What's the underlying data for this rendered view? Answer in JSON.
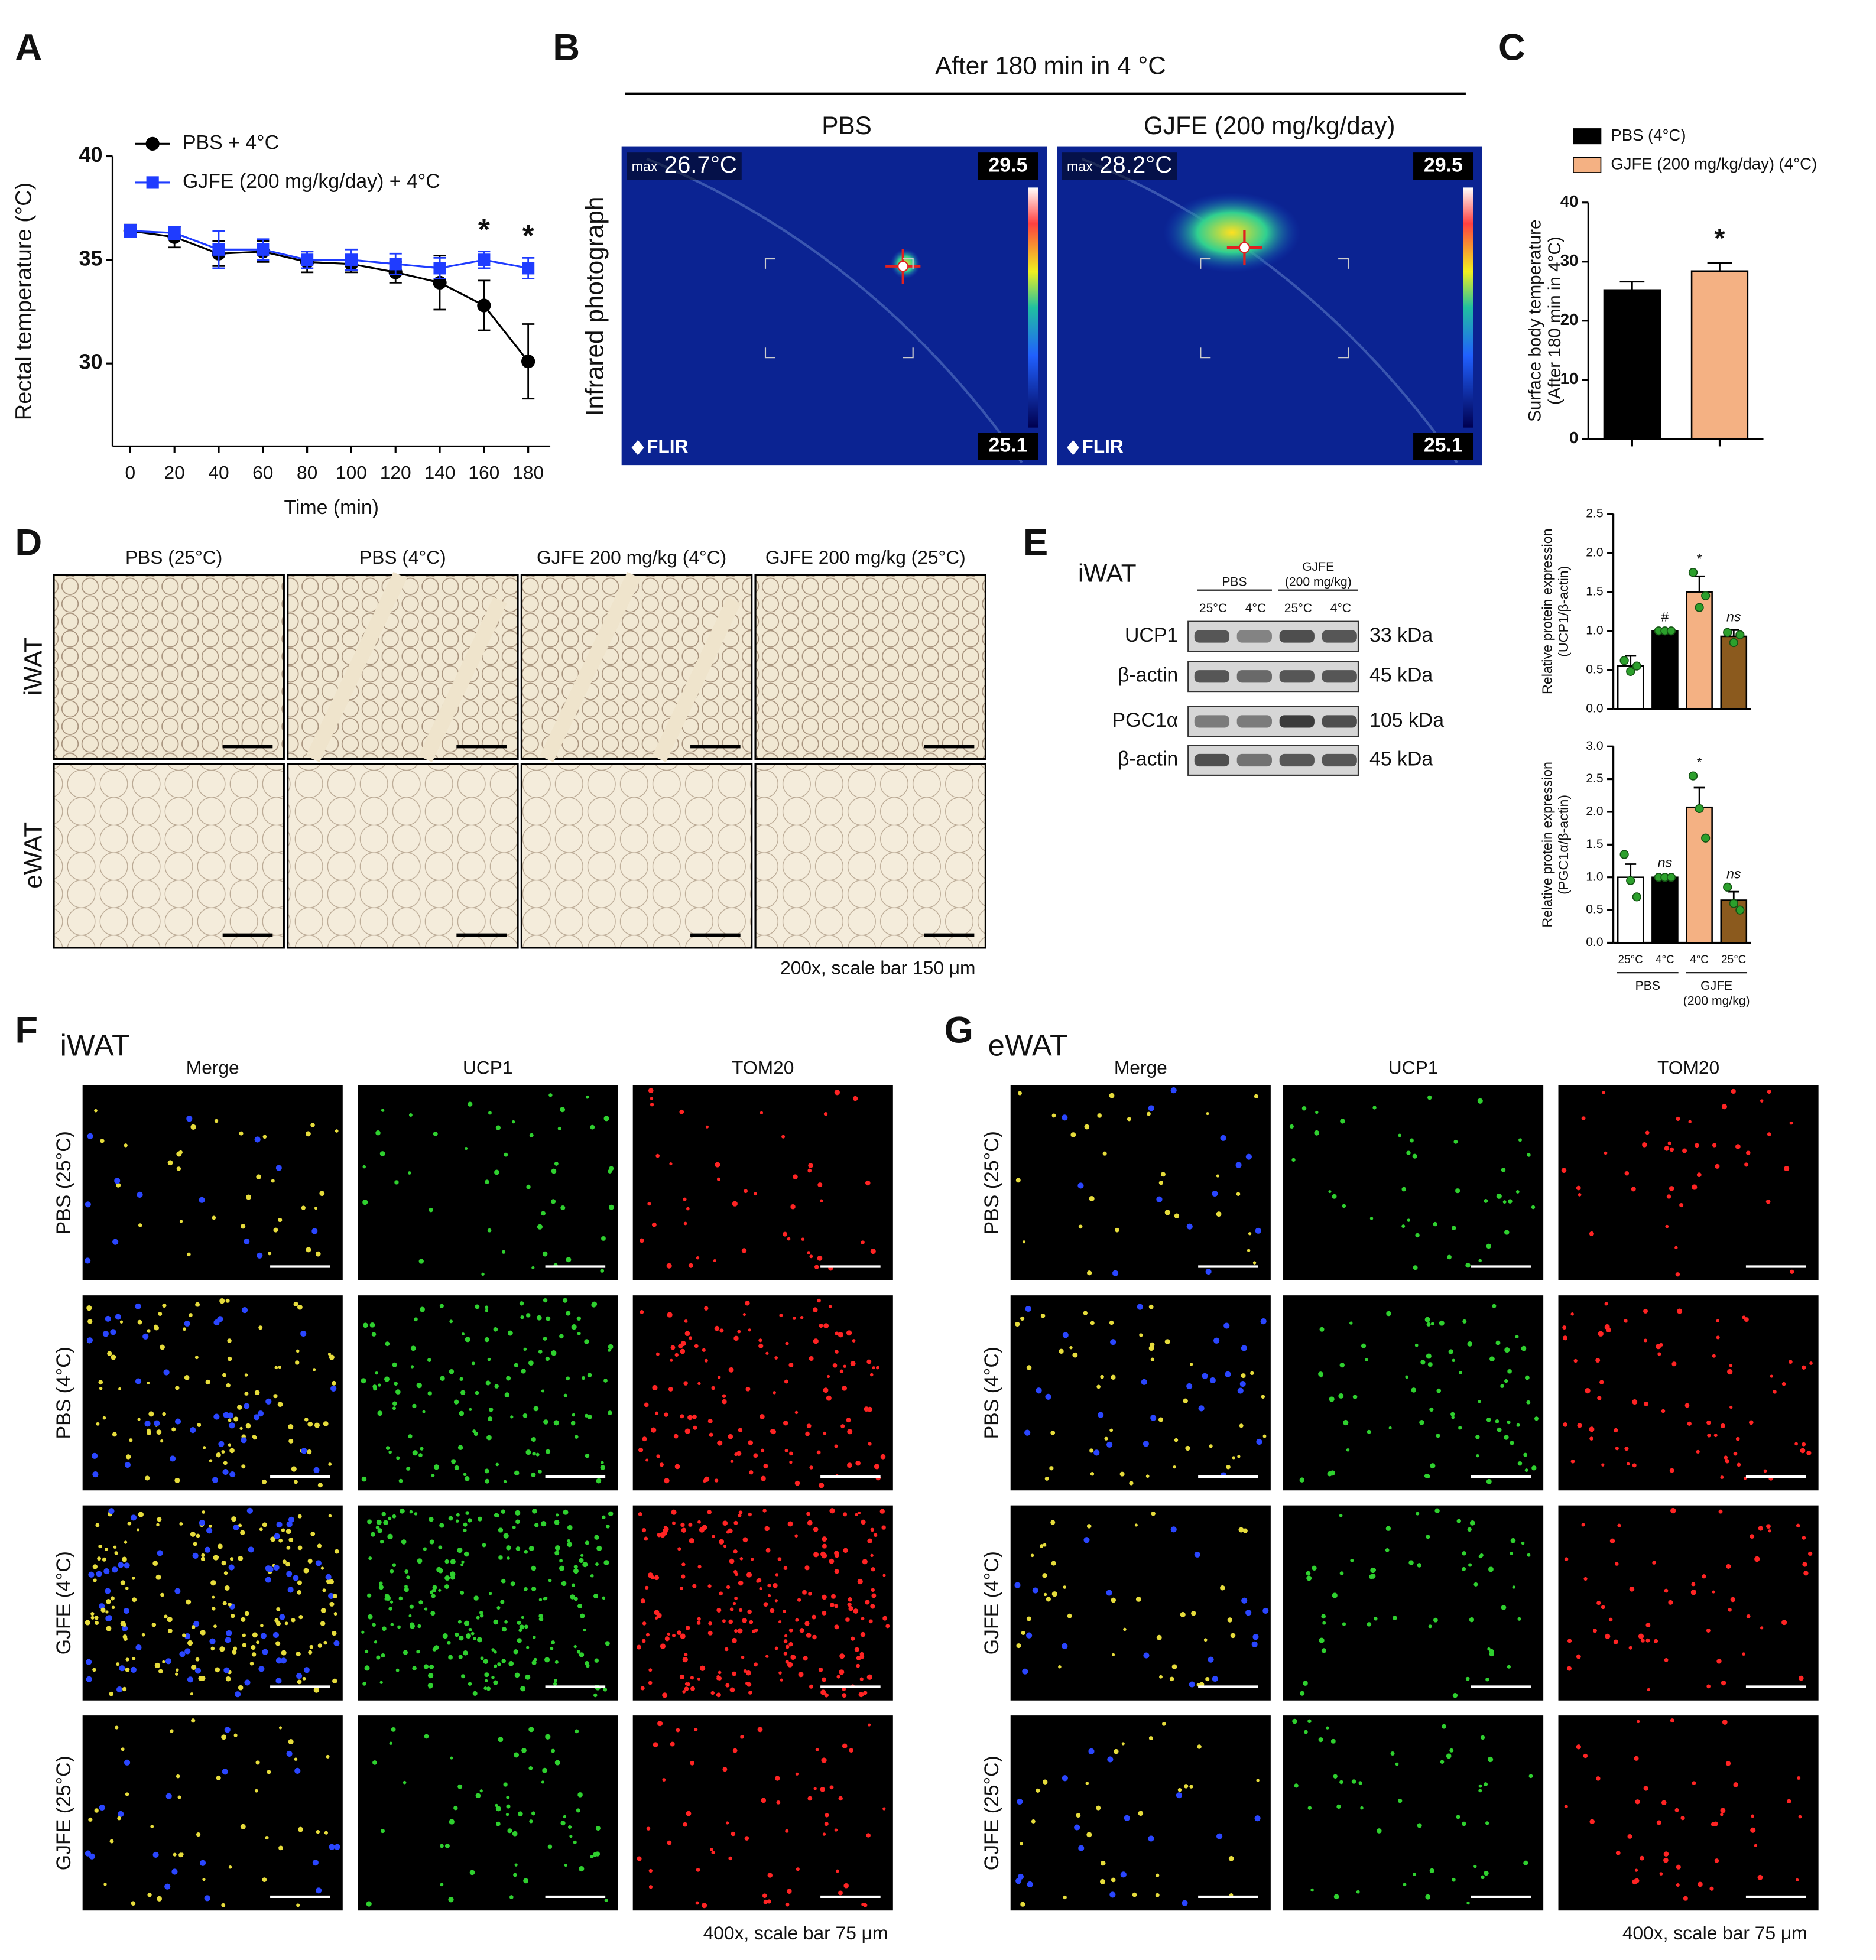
{
  "panel_labels": [
    "A",
    "B",
    "C",
    "D",
    "E",
    "F",
    "G"
  ],
  "chart_data": [
    {
      "type": "line",
      "ylabel": "Rectal temperature (°C)",
      "xlabel": "Time (min)",
      "x": [
        0,
        20,
        40,
        60,
        80,
        100,
        120,
        140,
        160,
        180
      ],
      "xlim": [
        -8,
        190
      ],
      "xticks": [
        0,
        20,
        40,
        60,
        80,
        100,
        120,
        140,
        160,
        180
      ],
      "ylim": [
        26,
        40
      ],
      "yticks": [
        30,
        35,
        40
      ],
      "legend": "upper-left",
      "series": [
        {
          "name": "PBS + 4°C",
          "color": "#000000",
          "marker": "circle",
          "values": [
            36.4,
            36.1,
            35.3,
            35.4,
            34.9,
            34.8,
            34.4,
            33.9,
            32.8,
            30.1
          ],
          "errors": [
            0.3,
            0.5,
            0.6,
            0.5,
            0.5,
            0.4,
            0.5,
            1.3,
            1.2,
            1.8
          ]
        },
        {
          "name": "GJFE (200 mg/kg/day) + 4°C",
          "color": "#1f3cff",
          "marker": "square",
          "values": [
            36.4,
            36.3,
            35.5,
            35.5,
            35.0,
            35.0,
            34.8,
            34.6,
            35.0,
            34.6
          ],
          "errors": [
            0.3,
            0.3,
            0.9,
            0.5,
            0.4,
            0.5,
            0.5,
            0.5,
            0.4,
            0.5
          ]
        }
      ],
      "annotations": [
        {
          "x": 160,
          "text": "*"
        },
        {
          "x": 180,
          "text": "*"
        }
      ]
    },
    {
      "type": "bar",
      "ylabel": [
        "Surface body temperature",
        "(After 180 min in 4°C)"
      ],
      "ylim": [
        0,
        40
      ],
      "yticks": [
        0,
        10,
        20,
        30,
        40
      ],
      "series": [
        {
          "name": "PBS (4°C)",
          "color": "#000000",
          "values": [
            25.2
          ],
          "errors": [
            1.4
          ]
        },
        {
          "name": "GJFE (200 mg/kg/day) (4°C)",
          "color": "#f4b183",
          "values": [
            28.4
          ],
          "errors": [
            1.4
          ],
          "annotation": "*"
        }
      ]
    },
    {
      "type": "bar",
      "ylabel": [
        "Relative protein expression",
        "(UCP1/β-actin)"
      ],
      "ylim": [
        0,
        2.5
      ],
      "yticks": [
        {
          "value": 0,
          "label": "0.0"
        },
        {
          "value": 0.5,
          "label": "0.5"
        },
        {
          "value": 1,
          "label": "1.0"
        },
        {
          "value": 1.5,
          "label": "1.5"
        },
        {
          "value": 2,
          "label": "2.0"
        },
        {
          "value": 2.5,
          "label": "2.5"
        }
      ],
      "colors": [
        "#ffffff",
        "#000000",
        "#f4b183",
        "#8b5a1e"
      ],
      "point_color": "#2ca02c",
      "values": [
        0.55,
        1.0,
        1.5,
        0.93
      ],
      "errors": [
        0.13,
        0.01,
        0.2,
        0.08
      ],
      "points": [
        [
          0.62,
          0.48,
          0.55
        ],
        [
          1.0,
          1.0,
          1.0
        ],
        [
          1.75,
          1.3,
          1.45
        ],
        [
          0.98,
          0.85,
          0.95
        ]
      ],
      "annotations": [
        null,
        "#",
        "*",
        "ns"
      ]
    },
    {
      "type": "bar",
      "ylabel": [
        "Relative protein expression",
        "(PGC1α/β-actin)"
      ],
      "ylim": [
        0,
        3
      ],
      "yticks": [
        {
          "value": 0,
          "label": "0.0"
        },
        {
          "value": 0.5,
          "label": "0.5"
        },
        {
          "value": 1,
          "label": "1.0"
        },
        {
          "value": 1.5,
          "label": "1.5"
        },
        {
          "value": 2,
          "label": "2.0"
        },
        {
          "value": 2.5,
          "label": "2.5"
        },
        {
          "value": 3,
          "label": "3.0"
        }
      ],
      "colors": [
        "#ffffff",
        "#000000",
        "#f4b183",
        "#8b5a1e"
      ],
      "point_color": "#2ca02c",
      "values": [
        1.0,
        1.0,
        2.07,
        0.65
      ],
      "errors": [
        0.2,
        0.02,
        0.3,
        0.13
      ],
      "points": [
        [
          1.35,
          0.95,
          0.7
        ],
        [
          1.0,
          1.0,
          1.0
        ],
        [
          2.55,
          2.05,
          1.6
        ],
        [
          0.85,
          0.6,
          0.5
        ]
      ],
      "annotations": [
        null,
        "ns",
        "*",
        "ns"
      ],
      "categories": [
        "25°C",
        "4°C",
        "4°C",
        "25°C"
      ],
      "groups": [
        "PBS",
        [
          "GJFE",
          "(200 mg/kg)"
        ]
      ]
    }
  ],
  "panel_b": {
    "title": "After 180 min in 4 °C",
    "side_label": "Infrared photograph",
    "max_label": "max",
    "brand": "FLIR",
    "images": [
      {
        "title": "PBS",
        "max": "26.7°C",
        "scale_max": "29.5",
        "scale_min": "25.1"
      },
      {
        "title": "GJFE (200 mg/kg/day)",
        "max": "28.2°C",
        "scale_max": "29.5",
        "scale_min": "25.1"
      }
    ]
  },
  "panel_d": {
    "columns": [
      "PBS (25°C)",
      "PBS (4°C)",
      "GJFE 200 mg/kg (4°C)",
      "GJFE 200 mg/kg (25°C)"
    ],
    "rows": [
      "iWAT",
      "eWAT"
    ],
    "footnote": "200x, scale bar 150 μm"
  },
  "panel_e_blot": {
    "tissue": "iWAT",
    "groups": [
      "PBS",
      [
        "GJFE",
        "(200 mg/kg)"
      ]
    ],
    "lanes": [
      "25°C",
      "4°C",
      "25°C",
      "4°C"
    ],
    "rows": [
      {
        "protein": "UCP1",
        "size": "33 kDa"
      },
      {
        "protein": "β-actin",
        "size": "45 kDa"
      },
      {
        "protein": "PGC1α",
        "size": "105 kDa"
      },
      {
        "protein": "β-actin",
        "size": "45 kDa"
      }
    ]
  },
  "panel_f": {
    "tissue": "iWAT",
    "columns": [
      "Merge",
      "UCP1",
      "TOM20"
    ],
    "rows": [
      "PBS (25°C)",
      "PBS (4°C)",
      "GJFE (4°C)",
      "GJFE (25°C)"
    ],
    "footnote": "400x, scale bar 75 μm"
  },
  "panel_g": {
    "tissue": "eWAT",
    "columns": [
      "Merge",
      "UCP1",
      "TOM20"
    ],
    "rows": [
      "PBS (25°C)",
      "PBS (4°C)",
      "GJFE (4°C)",
      "GJFE (25°C)"
    ],
    "footnote": "400x, scale bar 75 μm"
  }
}
